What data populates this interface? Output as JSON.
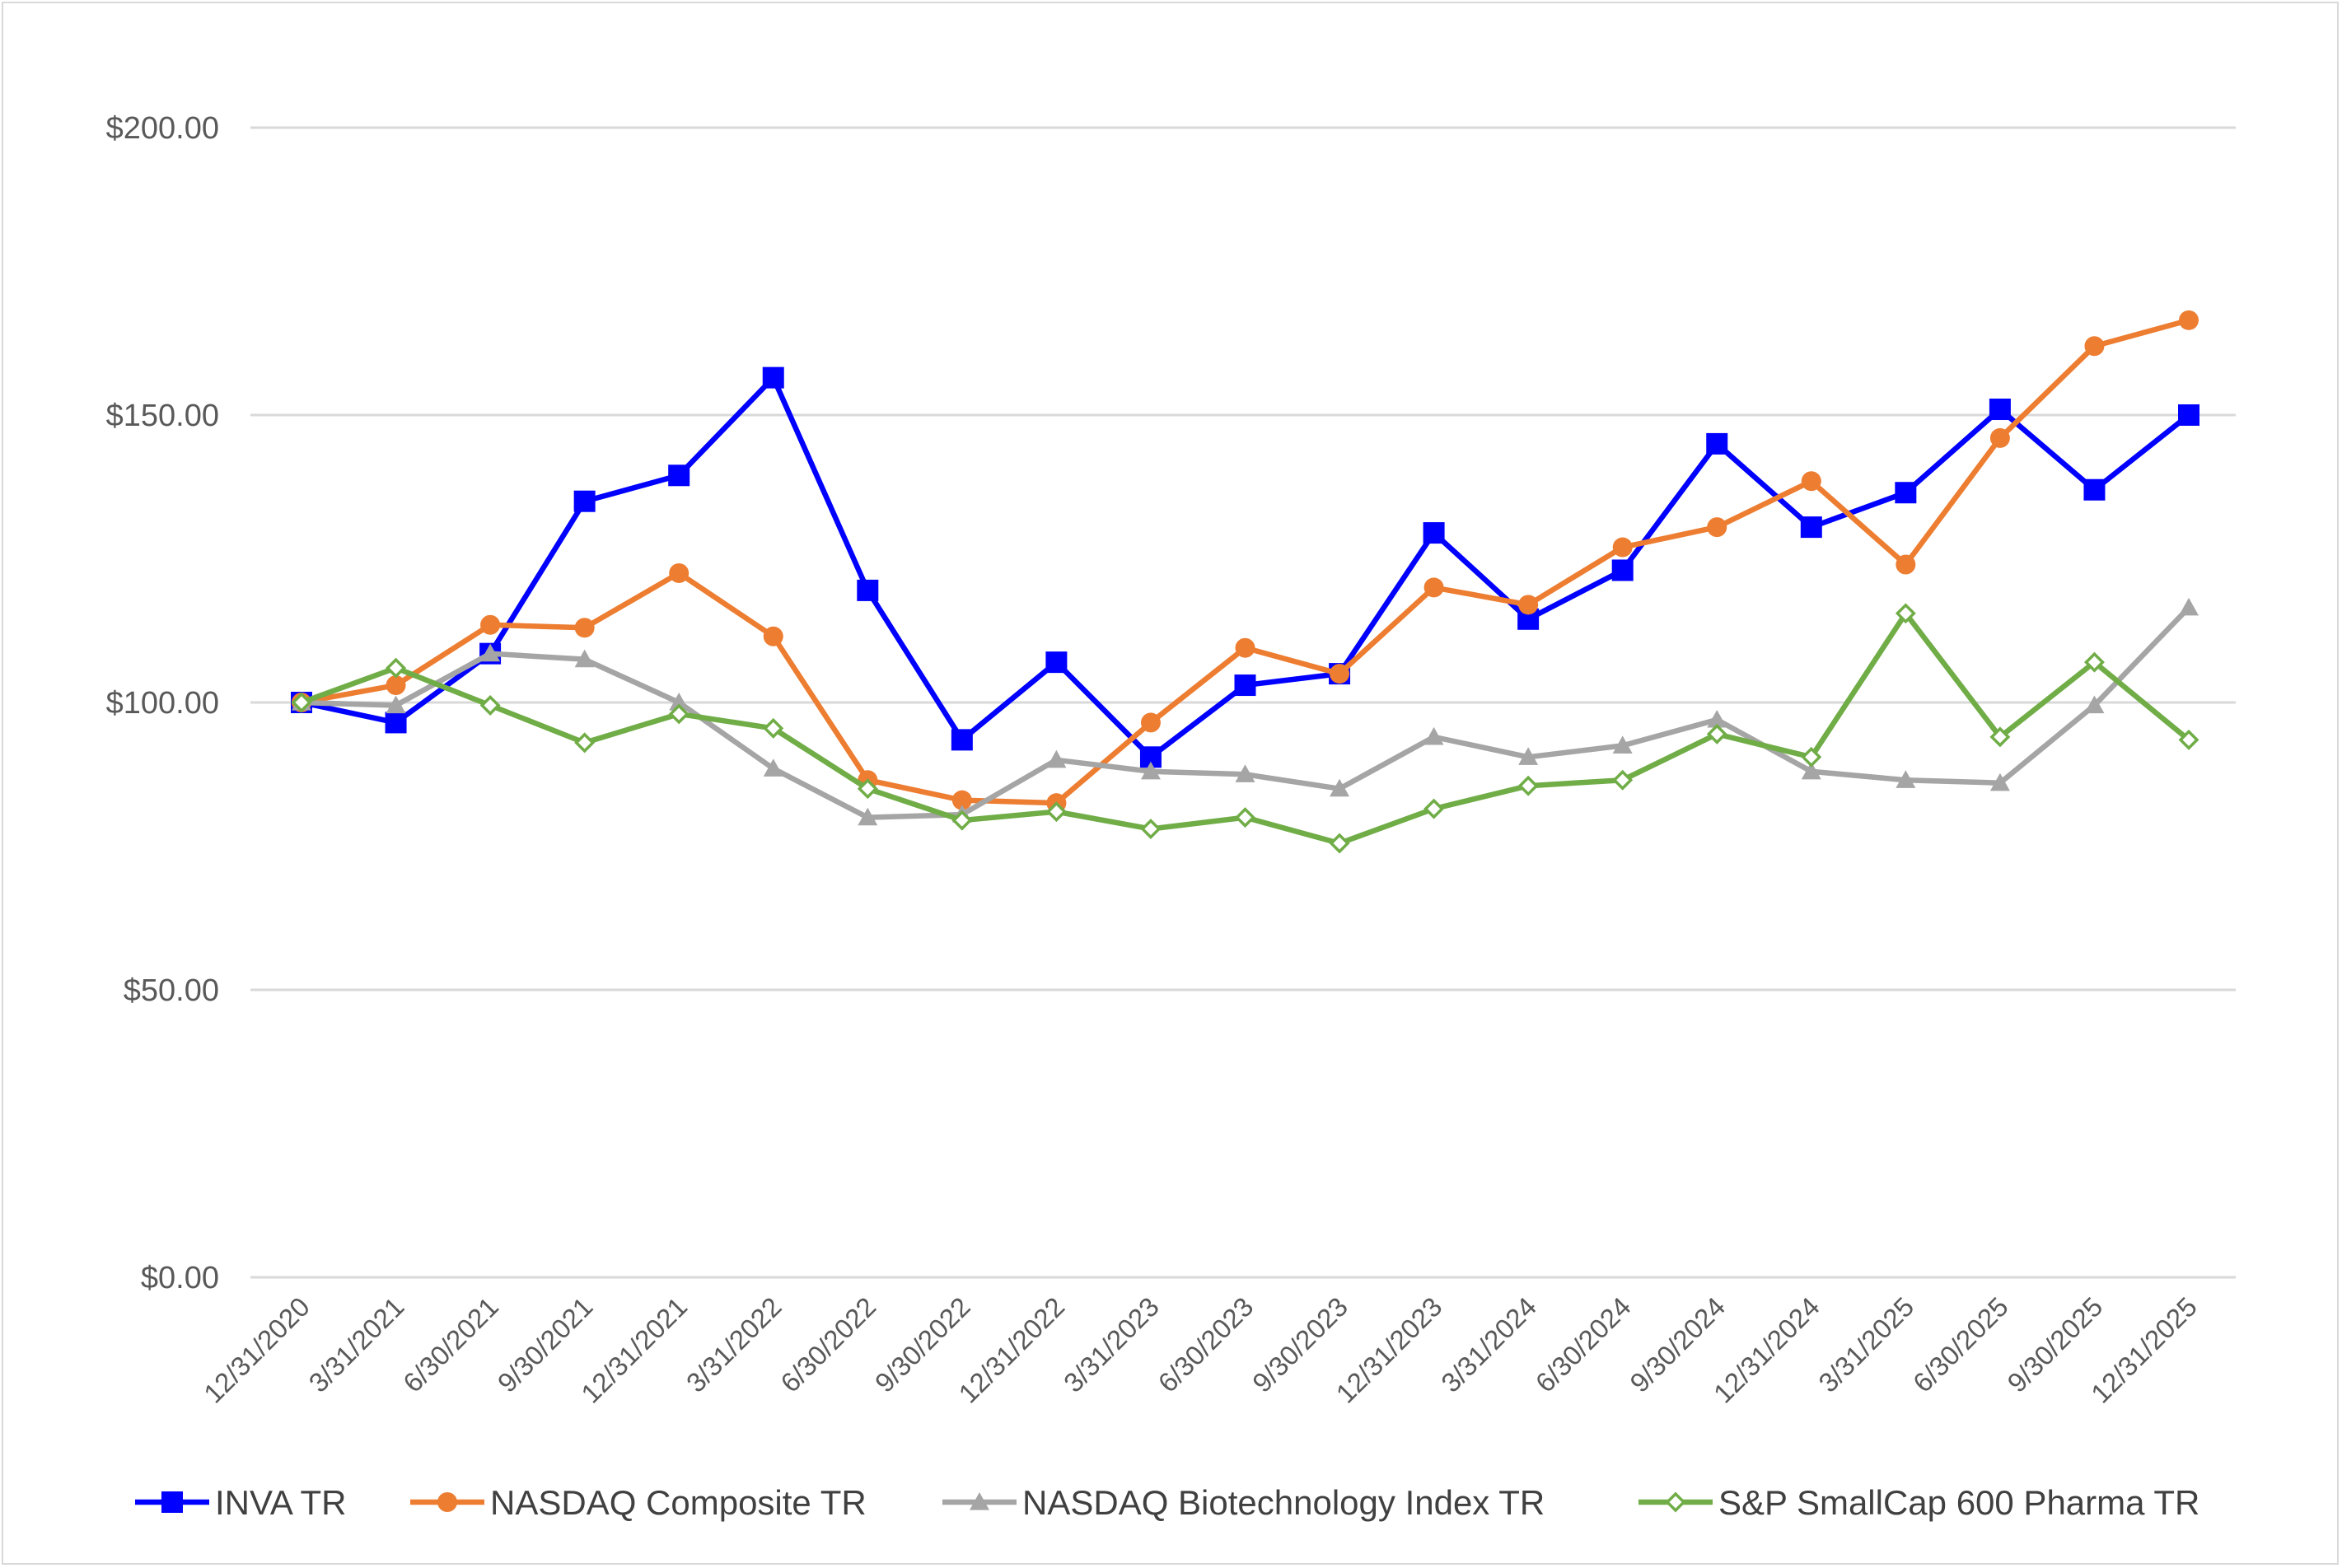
{
  "chart_data": {
    "type": "line",
    "title": "",
    "xlabel": "",
    "ylabel": "",
    "ylim": [
      0,
      200
    ],
    "yticks": [
      0,
      50,
      100,
      150,
      200
    ],
    "ytick_labels": [
      "$0.00",
      "$50.00",
      "$100.00",
      "$150.00",
      "$200.00"
    ],
    "grid": true,
    "legend_position": "bottom",
    "categories": [
      "12/31/2020",
      "3/31/2021",
      "6/30/2021",
      "9/30/2021",
      "12/31/2021",
      "3/31/2022",
      "6/30/2022",
      "9/30/2022",
      "12/31/2022",
      "3/31/2023",
      "6/30/2023",
      "9/30/2023",
      "12/31/2023",
      "3/31/2024",
      "6/30/2024",
      "9/30/2024",
      "12/31/2024",
      "3/31/2025",
      "6/30/2025",
      "9/30/2025",
      "12/31/2025"
    ],
    "series": [
      {
        "name": "INVA TR",
        "color": "#0000FF",
        "marker": "square",
        "values": [
          100.0,
          96.5,
          108.5,
          135.0,
          139.5,
          156.5,
          119.5,
          93.5,
          107.0,
          90.5,
          103.0,
          105.0,
          129.5,
          114.5,
          123.0,
          145.0,
          130.5,
          136.5,
          151.0,
          137.0,
          150.0
        ]
      },
      {
        "name": "NASDAQ Composite TR",
        "color": "#ED7D31",
        "marker": "circle",
        "values": [
          100.0,
          103.0,
          113.5,
          113.0,
          122.5,
          111.5,
          86.5,
          83.0,
          82.5,
          96.5,
          109.5,
          105.0,
          120.0,
          117.0,
          127.0,
          130.5,
          138.5,
          124.0,
          146.0,
          162.0,
          166.5
        ]
      },
      {
        "name": "NASDAQ Biotechnology Index TR",
        "color": "#A5A5A5",
        "marker": "triangle",
        "values": [
          100.0,
          99.5,
          108.5,
          107.5,
          100.0,
          88.5,
          80.0,
          80.5,
          90.0,
          88.0,
          87.5,
          85.0,
          94.0,
          90.5,
          92.5,
          97.0,
          88.0,
          86.5,
          86.0,
          99.5,
          116.5
        ]
      },
      {
        "name": "S&P SmallCap 600 Pharma TR",
        "color": "#70AD47",
        "marker": "diamond",
        "values": [
          100.0,
          106.0,
          99.5,
          93.0,
          98.0,
          95.5,
          85.0,
          79.5,
          81.0,
          78.0,
          80.0,
          75.5,
          81.5,
          85.5,
          86.5,
          94.5,
          90.5,
          115.5,
          94.0,
          107.0,
          93.5
        ]
      }
    ]
  }
}
